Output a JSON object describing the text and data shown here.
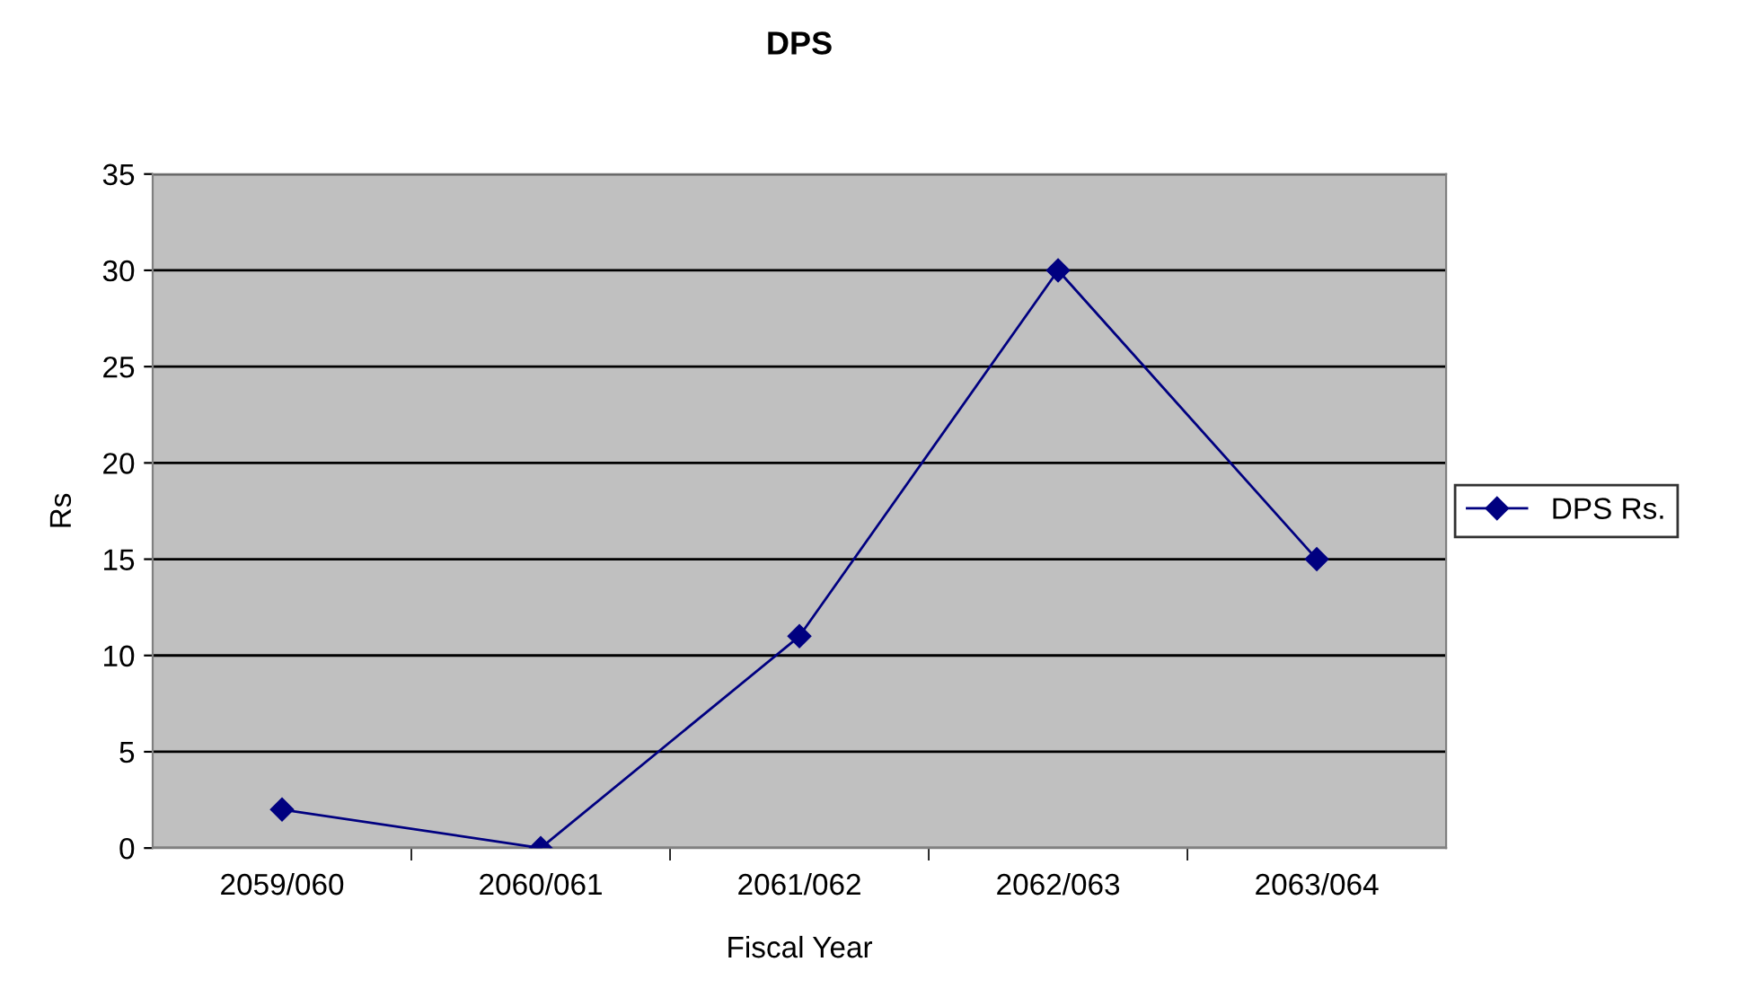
{
  "chart_data": {
    "type": "line",
    "title": "DPS",
    "xlabel": "Fiscal Year",
    "ylabel": "Rs",
    "categories": [
      "2059/060",
      "2060/061",
      "2061/062",
      "2062/063",
      "2063/064"
    ],
    "series": [
      {
        "name": "DPS Rs.",
        "color": "#000080",
        "values": [
          2,
          0,
          11,
          30,
          15
        ]
      }
    ],
    "ylim": [
      0,
      35
    ],
    "yticks": [
      0,
      5,
      10,
      15,
      20,
      25,
      30,
      35
    ],
    "grid": "y",
    "legend": "right",
    "marker": "diamond",
    "line_style": "solid"
  }
}
